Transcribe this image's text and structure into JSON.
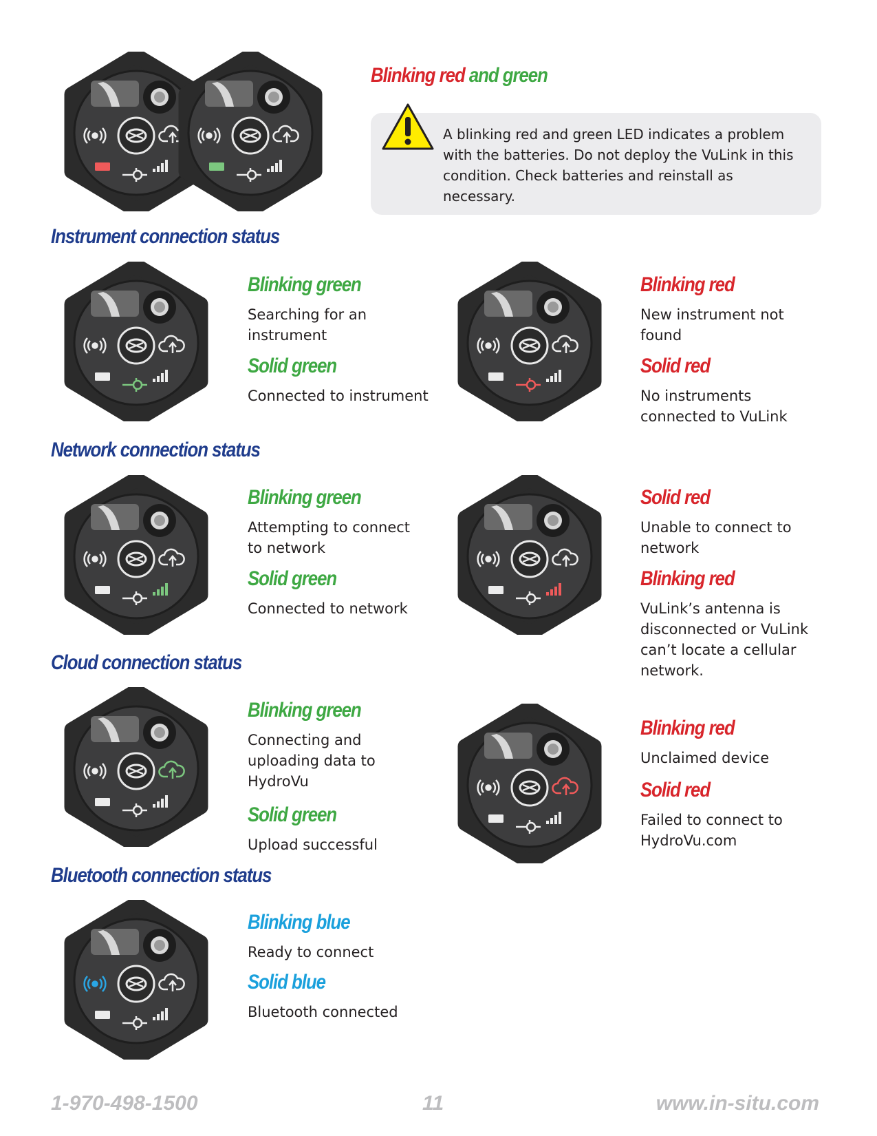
{
  "battery": {
    "heading_red": "Blinking red",
    "heading_green": "and green",
    "warning_text": "A blinking red and green LED indicates a problem with the batteries. Do not deploy the VuLink in this condition. Check batteries and reinstall as necessary."
  },
  "instrument": {
    "title": "Instrument connection status",
    "left": [
      {
        "heading": "Blinking green",
        "text": "Searching for an instrument"
      },
      {
        "heading": "Solid green",
        "text": "Connected to instrument"
      }
    ],
    "right": [
      {
        "heading": "Blinking red",
        "text": "New instrument not found"
      },
      {
        "heading": "Solid red",
        "text": "No instruments connected to VuLink"
      }
    ]
  },
  "network": {
    "title": "Network connection status",
    "left": [
      {
        "heading": "Blinking green",
        "text": "Attempting to connect to network"
      },
      {
        "heading": "Solid green",
        "text": "Connected to network"
      }
    ],
    "right": [
      {
        "heading": "Solid red",
        "text": "Unable to connect to network"
      },
      {
        "heading": "Blinking red",
        "text": "VuLink’s antenna is disconnected or VuLink can’t locate a cellular network."
      }
    ]
  },
  "cloud": {
    "title": "Cloud connection status",
    "left": [
      {
        "heading": "Blinking green",
        "text": "Connecting and uploading data to HydroVu"
      },
      {
        "heading": "Solid green",
        "text": "Upload successful"
      }
    ],
    "right": [
      {
        "heading": "Blinking red",
        "text": "Unclaimed device"
      },
      {
        "heading": "Solid red",
        "text": "Failed to connect to HydroVu.com"
      }
    ]
  },
  "bluetooth": {
    "title": "Bluetooth connection status",
    "left": [
      {
        "heading": "Blinking blue",
        "text": "Ready to connect"
      },
      {
        "heading": "Solid blue",
        "text": "Bluetooth connected"
      }
    ]
  },
  "footer": {
    "phone": "1-970-498-1500",
    "page": "11",
    "url": "www.in-situ.com"
  },
  "colors": {
    "section_title": "#1f3c8c",
    "green": "#3ea843",
    "red": "#d8252b",
    "blue": "#1aa0dc",
    "footer": "#bdbdbf"
  }
}
